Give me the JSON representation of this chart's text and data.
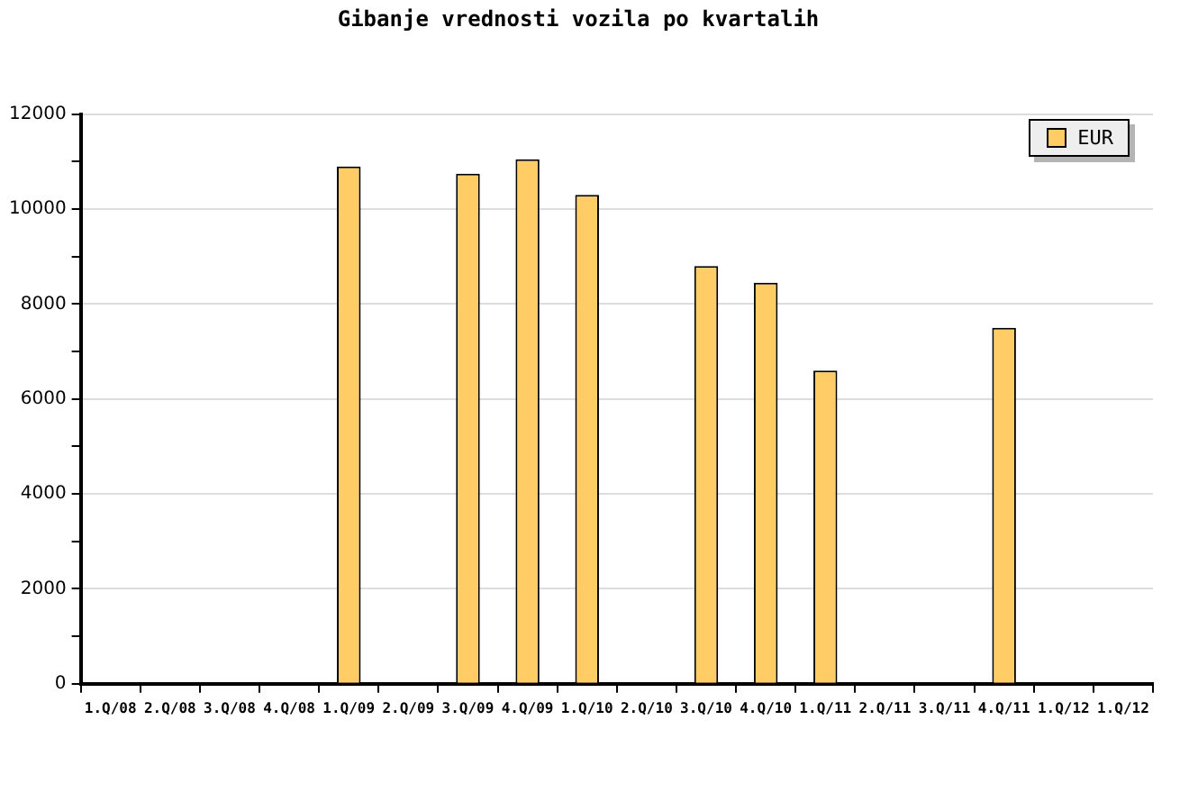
{
  "chart_data": {
    "type": "bar",
    "title": "Gibanje vrednosti vozila po kvartalih",
    "categories": [
      "1.Q/08",
      "2.Q/08",
      "3.Q/08",
      "4.Q/08",
      "1.Q/09",
      "2.Q/09",
      "3.Q/09",
      "4.Q/09",
      "1.Q/10",
      "2.Q/10",
      "3.Q/10",
      "4.Q/10",
      "1.Q/11",
      "2.Q/11",
      "3.Q/11",
      "4.Q/11",
      "1.Q/12",
      "1.Q/12"
    ],
    "series": [
      {
        "name": "EUR",
        "color": "#ffcc66",
        "values": [
          null,
          null,
          null,
          null,
          10900,
          null,
          10750,
          11050,
          10300,
          null,
          8800,
          8450,
          6600,
          null,
          null,
          7500,
          null,
          null
        ]
      }
    ],
    "ylim": [
      0,
      12000
    ],
    "yticks": [
      0,
      {
        "value": 1000,
        "label": null
      },
      2000,
      {
        "value": 3000,
        "label": null
      },
      4000,
      {
        "value": 5000,
        "label": null
      },
      6000,
      {
        "value": 7000,
        "label": null
      },
      8000,
      {
        "value": 9000,
        "label": null
      },
      10000,
      {
        "value": 11000,
        "label": null
      },
      12000
    ],
    "grid": "y",
    "legend": "top right"
  }
}
